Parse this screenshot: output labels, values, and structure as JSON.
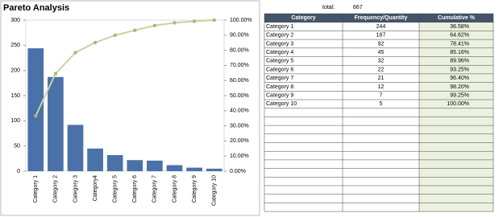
{
  "chart_data": {
    "type": "combo",
    "title": "Pareto Analysis",
    "categories": [
      "Category 1",
      "Category 2",
      "Category 3",
      "Category4",
      "Category 5",
      "Category 6",
      "Category 7",
      "Category 8",
      "Category 9",
      "Category 10"
    ],
    "series": [
      {
        "type": "bar",
        "color": "#4a72a8",
        "values": [
          244,
          187,
          92,
          45,
          32,
          22,
          21,
          12,
          7,
          5
        ]
      },
      {
        "type": "line",
        "color": "#c9d2a6",
        "axis": "y2",
        "values": [
          36.58,
          64.62,
          78.41,
          85.16,
          89.96,
          93.25,
          96.4,
          98.2,
          99.25,
          100.0
        ]
      }
    ],
    "ylim": [
      0,
      300
    ],
    "yticks": [
      0,
      50,
      100,
      150,
      200,
      250,
      300
    ],
    "y2lim": [
      0,
      100
    ],
    "y2ticks": [
      {
        "value": 0,
        "label": "0.00%"
      },
      {
        "value": 10,
        "label": "10.00%"
      },
      {
        "value": 20,
        "label": "20.00%"
      },
      {
        "value": 30,
        "label": "30.00%"
      },
      {
        "value": 40,
        "label": "40.00%"
      },
      {
        "value": 50,
        "label": "50.00%"
      },
      {
        "value": 60,
        "label": "60.00%"
      },
      {
        "value": 70,
        "label": "70.00%"
      },
      {
        "value": 80,
        "label": "80.00%"
      },
      {
        "value": 90,
        "label": "90.00%"
      },
      {
        "value": 100,
        "label": "100.00%"
      }
    ],
    "grid": false
  },
  "summary": {
    "label": "total:",
    "value": "667"
  },
  "table": {
    "columns": [
      "Category",
      "Frequency/Quantity",
      "Cumulative %"
    ],
    "rows": [
      [
        "Category 1",
        "244",
        "36.58%"
      ],
      [
        "Category 2",
        "187",
        "64.62%"
      ],
      [
        "Category 3",
        "92",
        "78.41%"
      ],
      [
        "Category 4",
        "45",
        "85.16%"
      ],
      [
        "Category 5",
        "32",
        "89.96%"
      ],
      [
        "Category 6",
        "22",
        "93.25%"
      ],
      [
        "Category 7",
        "21",
        "96.40%"
      ],
      [
        "Category 8",
        "12",
        "98.20%"
      ],
      [
        "Category 9",
        "7",
        "99.25%"
      ],
      [
        "Category 10",
        "5",
        "100.00%"
      ]
    ]
  }
}
